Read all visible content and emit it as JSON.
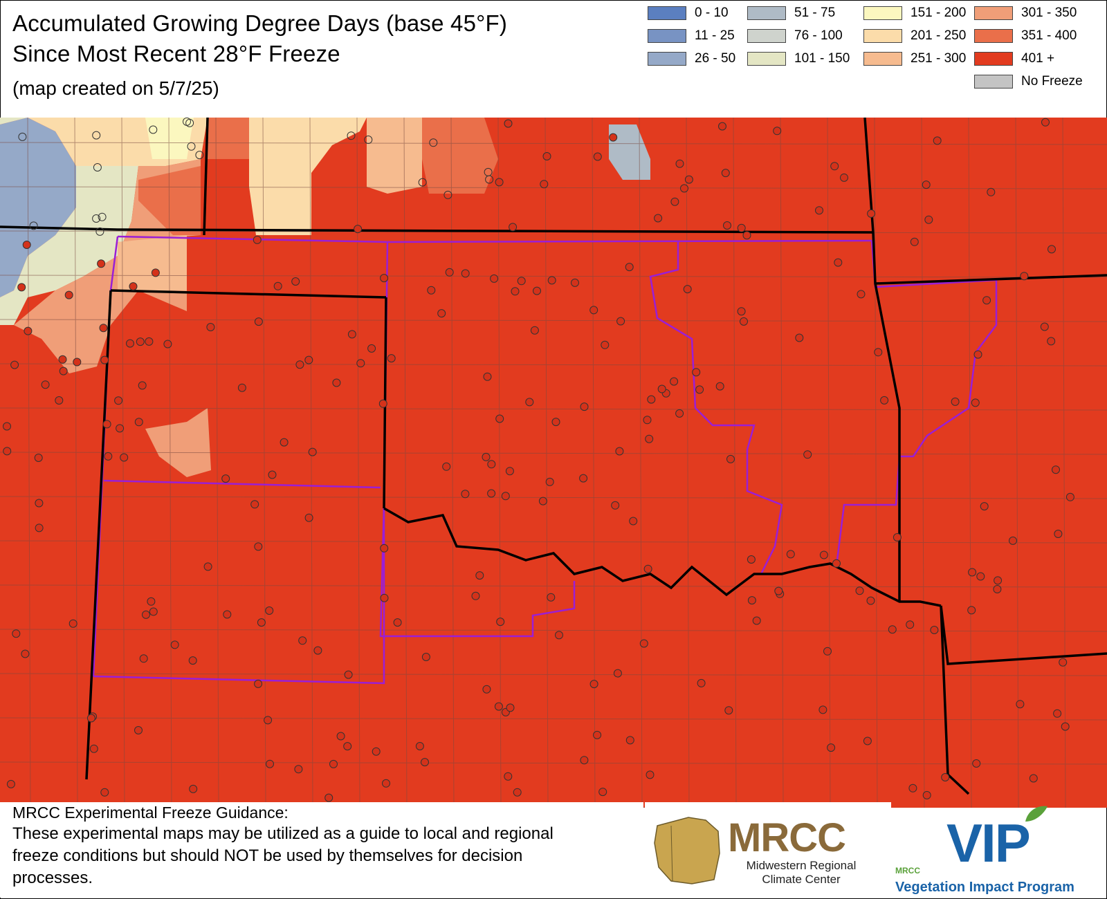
{
  "title": {
    "line1": "Accumulated Growing Degree Days (base 45°F)",
    "line2": "Since Most Recent 28°F Freeze",
    "created": "(map created on 5/7/25)"
  },
  "legend": [
    {
      "label": "0 - 10",
      "color": "#5b7fc0"
    },
    {
      "label": "11 - 25",
      "color": "#7893c3"
    },
    {
      "label": "26 - 50",
      "color": "#95a9c8"
    },
    {
      "label": "51 - 75",
      "color": "#afbbc6"
    },
    {
      "label": "76 - 100",
      "color": "#cfd3cd"
    },
    {
      "label": "101 - 150",
      "color": "#e4e6c4"
    },
    {
      "label": "151 - 200",
      "color": "#fbf7bf"
    },
    {
      "label": "201 - 250",
      "color": "#fbdcaa"
    },
    {
      "label": "251 - 300",
      "color": "#f6bb8f"
    },
    {
      "label": "301 - 350",
      "color": "#f09e78"
    },
    {
      "label": "351 - 400",
      "color": "#ea6f4a"
    },
    {
      "label": "401 +",
      "color": "#e23b1f"
    },
    {
      "label": "No Freeze",
      "color": "#c4c4c4"
    }
  ],
  "map_colors": {
    "base": "#e23b1f",
    "state_border": "#000000",
    "county_border": "#7a4a40",
    "region_border": "#9a1ed6"
  },
  "note": {
    "heading": "MRCC Experimental Freeze Guidance:",
    "body": "These experimental maps may be utilized as a guide to local and regional freeze conditions but should NOT be used by themselves for decision processes."
  },
  "logos": {
    "mrcc": "MRCC",
    "mrcc_sub": "Midwestern Regional Climate Center",
    "vip": "VIP",
    "vip_small": "MRCC",
    "vip_sub": "Vegetation Impact Program"
  }
}
